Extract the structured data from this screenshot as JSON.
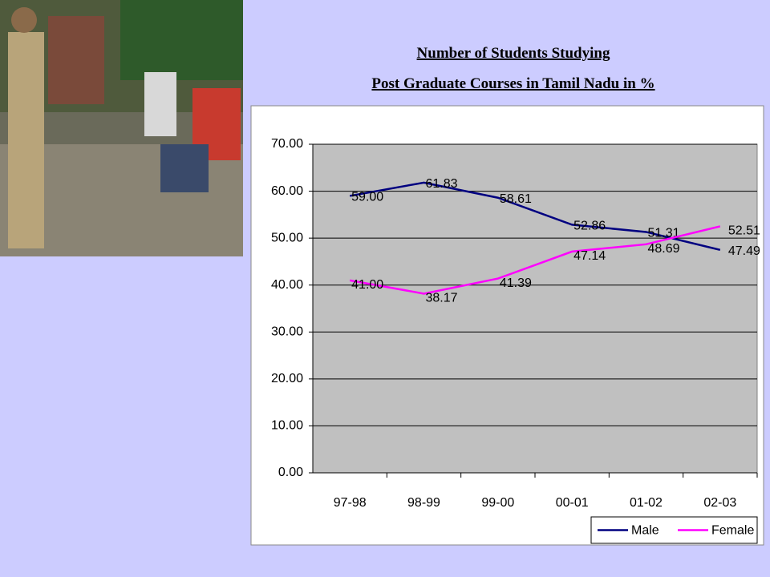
{
  "chart_data": {
    "type": "line",
    "title": "Number of Students Studying",
    "subtitle": "Post Graduate Courses in Tamil Nadu in %",
    "categories": [
      "97-98",
      "98-99",
      "99-00",
      "00-01",
      "01-02",
      "02-03"
    ],
    "series": [
      {
        "name": "Male",
        "color": "#000080",
        "values": [
          59.0,
          61.83,
          58.61,
          52.86,
          51.31,
          47.49
        ],
        "value_labels": [
          "59.00",
          "61.83",
          "58.61",
          "52.86",
          "51.31",
          "47.49"
        ]
      },
      {
        "name": "Female",
        "color": "#ff00ff",
        "values": [
          41.0,
          38.17,
          41.39,
          47.14,
          48.69,
          52.51
        ],
        "value_labels": [
          "41.00",
          "38.17",
          "41.39",
          "47.14",
          "48.69",
          "52.51"
        ]
      }
    ],
    "ylim": [
      0,
      70
    ],
    "yticks": [
      {
        "value": 0,
        "label": "0.00"
      },
      {
        "value": 10,
        "label": "10.00"
      },
      {
        "value": 20,
        "label": "20.00"
      },
      {
        "value": 30,
        "label": "30.00"
      },
      {
        "value": 40,
        "label": "40.00"
      },
      {
        "value": 50,
        "label": "50.00"
      },
      {
        "value": 60,
        "label": "60.00"
      },
      {
        "value": 70,
        "label": "70.00"
      }
    ],
    "grid": true,
    "legend": "bottom-right"
  }
}
